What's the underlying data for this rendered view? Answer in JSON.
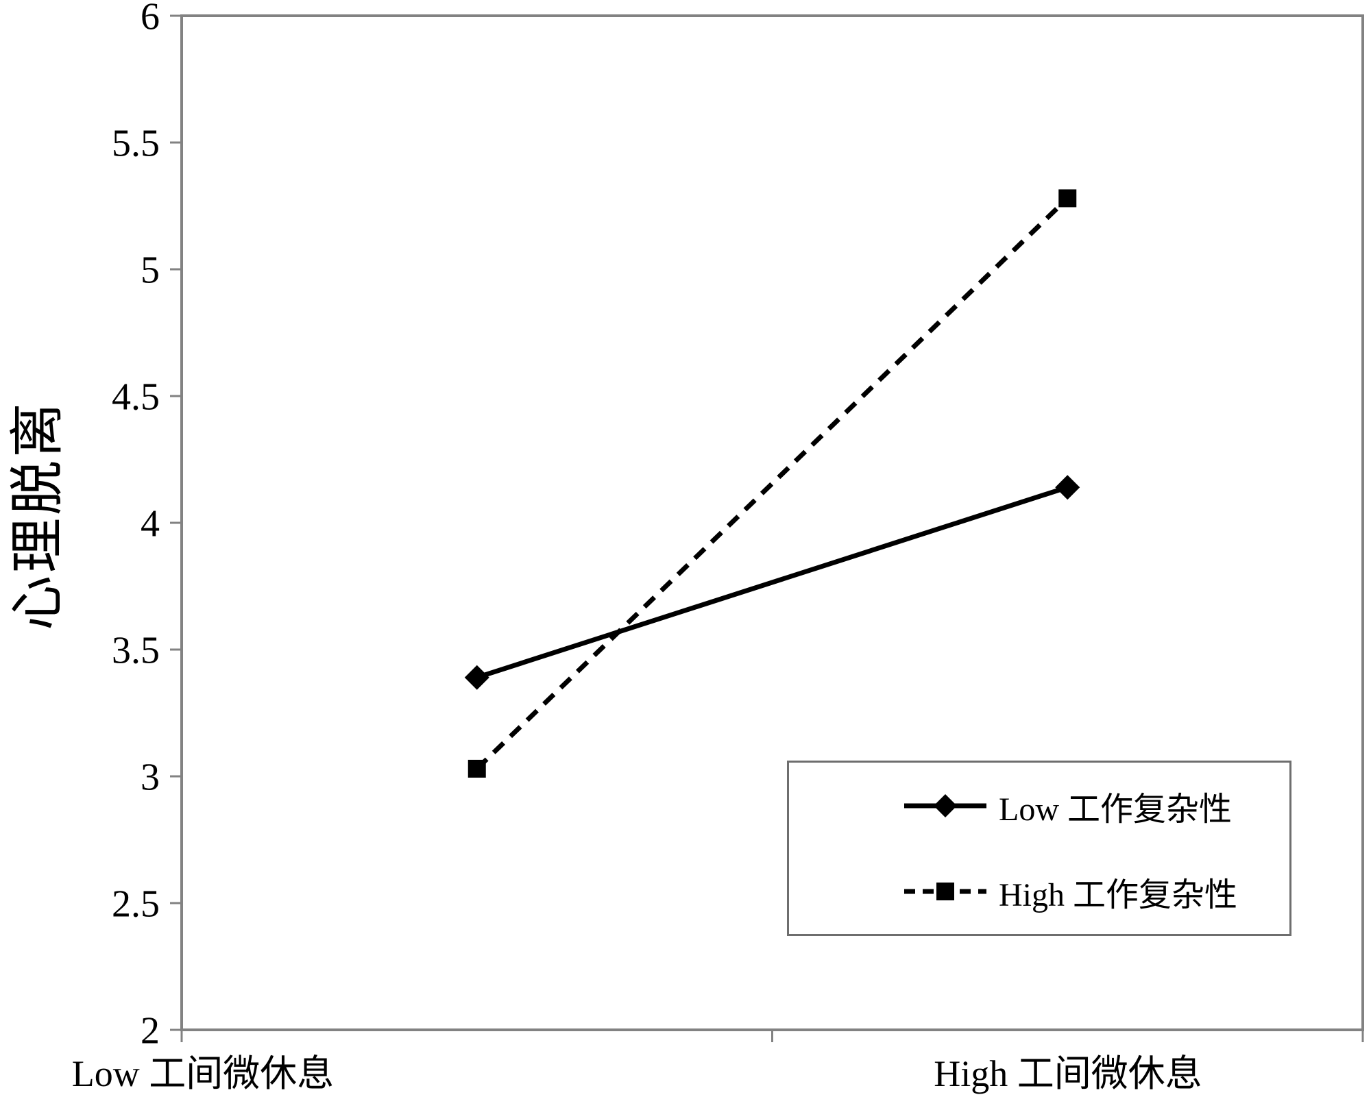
{
  "figure": {
    "background": "#ffffff",
    "text_color": "#000000",
    "axis_color": "#828282",
    "legend_border_color": "#6e6e6e"
  },
  "chart_data": {
    "type": "line",
    "title": "",
    "categories": [
      "Low 工间微休息",
      "High 工间微休息"
    ],
    "series": [
      {
        "name": "Low 工作复杂性",
        "values": [
          3.39,
          4.14
        ],
        "line": "solid",
        "marker": "diamond",
        "color": "#000000"
      },
      {
        "name": "High 工作复杂性",
        "values": [
          3.03,
          5.28
        ],
        "line": "dashed",
        "marker": "square",
        "color": "#000000"
      }
    ],
    "xlabel": "",
    "ylabel": "心理脱离",
    "ylim": [
      2,
      6
    ],
    "ytick_step": 0.5,
    "yticks": [
      "2",
      "2.5",
      "3",
      "3.5",
      "4",
      "4.5",
      "5",
      "5.5",
      "6"
    ],
    "grid": false,
    "plot_border": true,
    "legend_position": "inside-lower-right"
  }
}
